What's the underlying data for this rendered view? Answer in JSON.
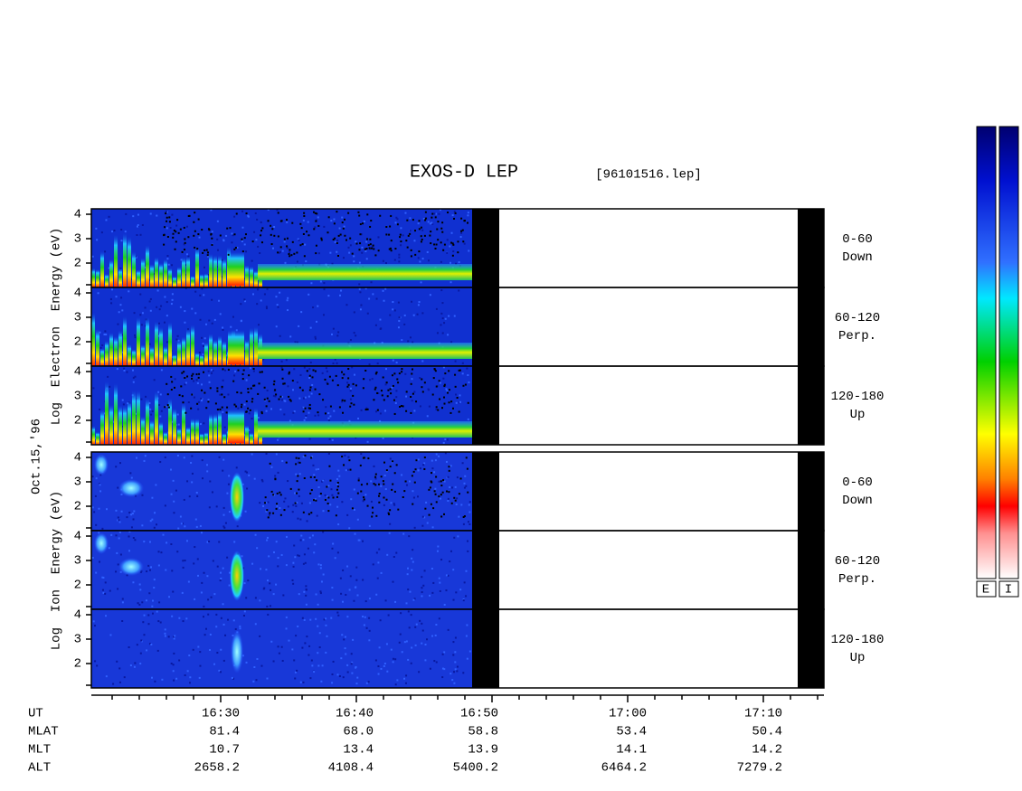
{
  "header": {
    "title": "EXOS-D LEP",
    "file": "[96101516.lep]"
  },
  "date": "Oct.15,'96",
  "electron": {
    "axis_label": "Log  Electron  Energy (eV)",
    "panels": [
      {
        "angle": "0-60",
        "direction": "Down"
      },
      {
        "angle": "60-120",
        "direction": "Perp."
      },
      {
        "angle": "120-180",
        "direction": "Up"
      }
    ],
    "yticks": [
      2,
      3,
      4
    ]
  },
  "ion": {
    "axis_label": "Log  Ion  Energy (eV)",
    "panels": [
      {
        "angle": "0-60",
        "direction": "Down"
      },
      {
        "angle": "60-120",
        "direction": "Perp."
      },
      {
        "angle": "120-180",
        "direction": "Up"
      }
    ],
    "yticks": [
      2,
      3,
      4
    ]
  },
  "table": {
    "rows": [
      {
        "label": "UT",
        "values": [
          "16:30",
          "16:40",
          "16:50",
          "17:00",
          "17:10"
        ]
      },
      {
        "label": "MLAT",
        "values": [
          "81.4",
          "68.0",
          "58.8",
          "53.4",
          "50.4"
        ]
      },
      {
        "label": "MLT",
        "values": [
          "10.7",
          "13.4",
          "13.9",
          "14.1",
          "14.2"
        ]
      },
      {
        "label": "ALT",
        "values": [
          "2658.2",
          "4108.4",
          "5400.2",
          "6464.2",
          "7279.2"
        ]
      }
    ]
  },
  "colorbar": {
    "labels": [
      "E",
      "I"
    ]
  }
}
